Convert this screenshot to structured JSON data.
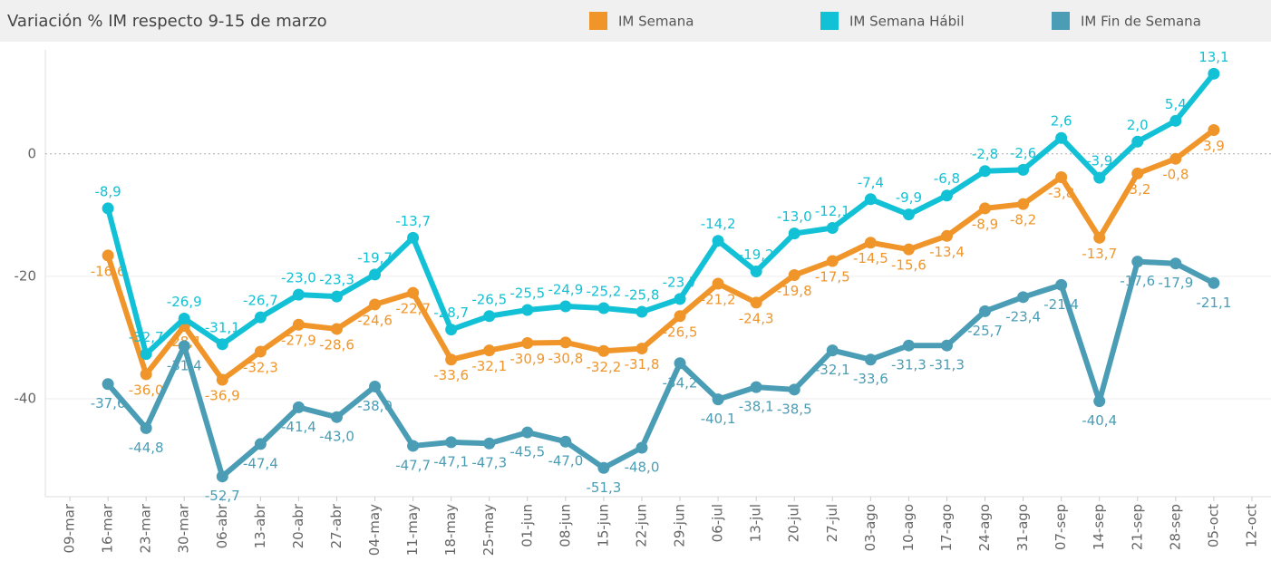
{
  "chart_data": {
    "type": "line",
    "title": "Variación % IM respecto 9-15 de marzo",
    "categories": [
      "09-mar",
      "16-mar",
      "23-mar",
      "30-mar",
      "06-abr",
      "13-abr",
      "20-abr",
      "27-abr",
      "04-may",
      "11-may",
      "18-may",
      "25-may",
      "01-jun",
      "08-jun",
      "15-jun",
      "22-jun",
      "29-jun",
      "06-jul",
      "13-jul",
      "20-jul",
      "27-jul",
      "03-ago",
      "10-ago",
      "17-ago",
      "24-ago",
      "31-ago",
      "07-sep",
      "14-sep",
      "21-sep",
      "28-sep",
      "05-oct",
      "12-oct"
    ],
    "series": [
      {
        "name": "IM Semana",
        "color": "#f0952a",
        "values": [
          null,
          -16.6,
          -36.0,
          -28.1,
          -36.9,
          -32.3,
          -27.9,
          -28.6,
          -24.6,
          -22.7,
          -33.6,
          -32.1,
          -30.9,
          -30.8,
          -32.2,
          -31.8,
          -26.5,
          -21.2,
          -24.3,
          -19.8,
          -17.5,
          -14.5,
          -15.6,
          -13.4,
          -8.9,
          -8.2,
          -3.8,
          -13.7,
          -3.2,
          -0.8,
          3.9,
          null
        ],
        "value_labels": [
          null,
          "-16,6",
          "-36,0",
          "-28,1",
          "-36,9",
          "-32,3",
          "-27,9",
          "-28,6",
          "-24,6",
          "-22,7",
          "-33,6",
          "-32,1",
          "-30,9",
          "-30,8",
          "-32,2",
          "-31,8",
          "-26,5",
          "-21,2",
          "-24,3",
          "-19,8",
          "-17,5",
          "-14,5",
          "-15,6",
          "-13,4",
          "-8,9",
          "-8,2",
          "-3,8",
          "-13,7",
          "-3,2",
          "-0,8",
          "3,9",
          null
        ]
      },
      {
        "name": "IM Semana Hábil",
        "color": "#12c1d5",
        "values": [
          null,
          -8.9,
          -32.7,
          -26.9,
          -31.1,
          -26.7,
          -23.0,
          -23.3,
          -19.7,
          -13.7,
          -28.7,
          -26.5,
          -25.5,
          -24.9,
          -25.2,
          -25.8,
          -23.7,
          -14.2,
          -19.2,
          -13.0,
          -12.1,
          -7.4,
          -9.9,
          -6.8,
          -2.8,
          -2.6,
          2.6,
          -3.9,
          2.0,
          5.4,
          13.1,
          null
        ],
        "value_labels": [
          null,
          "-8,9",
          "-32,7",
          "-26,9",
          "-31,1",
          "-26,7",
          "-23,0",
          "-23,3",
          "-19,7",
          "-13,7",
          "-28,7",
          "-26,5",
          "-25,5",
          "-24,9",
          "-25,2",
          "-25,8",
          "-23,7",
          "-14,2",
          "-19,2",
          "-13,0",
          "-12,1",
          "-7,4",
          "-9,9",
          "-6,8",
          "-2,8",
          "-2,6",
          "2,6",
          "-3,9",
          "2,0",
          "5,4",
          "13,1",
          null
        ]
      },
      {
        "name": "IM Fin de Semana",
        "color": "#4a9db5",
        "values": [
          null,
          -37.6,
          -44.8,
          -31.4,
          -52.7,
          -47.4,
          -41.4,
          -43.0,
          -38.0,
          -47.7,
          -47.1,
          -47.3,
          -45.5,
          -47.0,
          -51.3,
          -48.0,
          -34.2,
          -40.1,
          -38.1,
          -38.5,
          -32.1,
          -33.6,
          -31.3,
          -31.3,
          -25.7,
          -23.4,
          -21.4,
          -40.4,
          -17.6,
          -17.9,
          -21.1,
          null
        ],
        "value_labels": [
          null,
          "-37,6",
          "-44,8",
          "-31,4",
          "-52,7",
          "-47,4",
          "-41,4",
          "-43,0",
          "-38,0",
          "-47,7",
          "-47,1",
          "-47,3",
          "-45,5",
          "-47,0",
          "-51,3",
          "-48,0",
          "-34,2",
          "-40,1",
          "-38,1",
          "-38,5",
          "-32,1",
          "-33,6",
          "-31,3",
          "-31,3",
          "-25,7",
          "-23,4",
          "-21,4",
          "-40,4",
          "-17,6",
          "-17,9",
          "-21,1",
          null
        ]
      }
    ],
    "ylim": [
      -56,
      17
    ],
    "yticks": [
      -40,
      -20,
      0
    ],
    "grid": true
  }
}
